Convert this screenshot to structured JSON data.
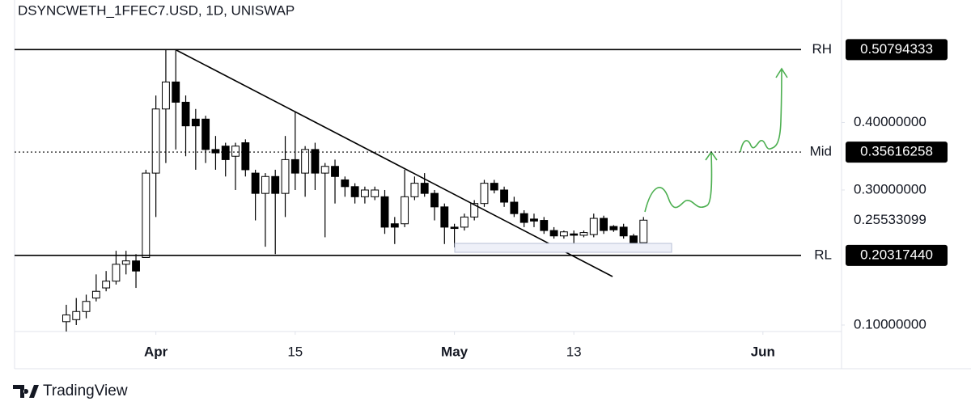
{
  "chart_data": {
    "type": "candlestick",
    "title": "DSYNCWETH_1FFEC7.USD, 1D, UNISWAP",
    "brand": "TradingView",
    "x": [
      -9,
      -8,
      -7,
      -6,
      -5,
      -4,
      -3,
      -2,
      -1,
      0,
      1,
      2,
      3,
      4,
      5,
      6,
      7,
      8,
      9,
      10,
      11,
      12,
      13,
      14,
      15,
      16,
      17,
      18,
      19,
      20,
      21,
      22,
      23,
      24,
      25,
      26,
      27,
      28,
      29,
      30,
      31,
      32,
      33,
      34,
      35,
      36,
      37,
      38,
      39,
      40,
      41,
      42,
      43,
      44,
      45,
      46,
      47,
      48,
      49
    ],
    "open": [
      0.105,
      0.108,
      0.12,
      0.14,
      0.155,
      0.165,
      0.19,
      0.195,
      0.2,
      0.325,
      0.42,
      0.46,
      0.43,
      0.405,
      0.405,
      0.36,
      0.365,
      0.35,
      0.37,
      0.325,
      0.295,
      0.32,
      0.295,
      0.345,
      0.325,
      0.36,
      0.325,
      0.335,
      0.315,
      0.305,
      0.29,
      0.29,
      0.29,
      0.25,
      0.25,
      0.29,
      0.31,
      0.295,
      0.275,
      0.245,
      0.245,
      0.26,
      0.28,
      0.31,
      0.3,
      0.282,
      0.265,
      0.257,
      0.255,
      0.24,
      0.232,
      0.235,
      0.233,
      0.234,
      0.258,
      0.246,
      0.245,
      0.232,
      0.222
    ],
    "high": [
      0.13,
      0.14,
      0.145,
      0.175,
      0.18,
      0.21,
      0.21,
      0.205,
      0.33,
      0.44,
      0.508,
      0.508,
      0.44,
      0.42,
      0.41,
      0.38,
      0.37,
      0.37,
      0.375,
      0.33,
      0.325,
      0.33,
      0.38,
      0.416,
      0.365,
      0.37,
      0.34,
      0.345,
      0.32,
      0.31,
      0.305,
      0.305,
      0.3,
      0.26,
      0.33,
      0.32,
      0.325,
      0.3,
      0.28,
      0.25,
      0.265,
      0.285,
      0.315,
      0.315,
      0.305,
      0.29,
      0.27,
      0.265,
      0.26,
      0.245,
      0.24,
      0.24,
      0.24,
      0.265,
      0.262,
      0.248,
      0.25,
      0.235,
      0.26
    ],
    "low": [
      0.09,
      0.1,
      0.11,
      0.135,
      0.15,
      0.16,
      0.175,
      0.155,
      0.2,
      0.26,
      0.34,
      0.36,
      0.35,
      0.33,
      0.34,
      0.33,
      0.32,
      0.3,
      0.32,
      0.255,
      0.216,
      0.205,
      0.26,
      0.3,
      0.29,
      0.3,
      0.23,
      0.28,
      0.29,
      0.28,
      0.28,
      0.285,
      0.235,
      0.22,
      0.245,
      0.285,
      0.29,
      0.255,
      0.22,
      0.215,
      0.24,
      0.255,
      0.275,
      0.295,
      0.275,
      0.26,
      0.245,
      0.245,
      0.235,
      0.228,
      0.228,
      0.21,
      0.23,
      0.23,
      0.235,
      0.238,
      0.228,
      0.22,
      0.218
    ],
    "close": [
      0.115,
      0.12,
      0.135,
      0.15,
      0.165,
      0.19,
      0.195,
      0.18,
      0.325,
      0.42,
      0.46,
      0.43,
      0.395,
      0.395,
      0.36,
      0.355,
      0.345,
      0.365,
      0.33,
      0.295,
      0.32,
      0.295,
      0.345,
      0.325,
      0.36,
      0.325,
      0.335,
      0.32,
      0.305,
      0.29,
      0.3,
      0.3,
      0.245,
      0.245,
      0.29,
      0.31,
      0.295,
      0.275,
      0.245,
      0.243,
      0.26,
      0.28,
      0.31,
      0.3,
      0.282,
      0.265,
      0.252,
      0.254,
      0.24,
      0.232,
      0.238,
      0.233,
      0.237,
      0.258,
      0.24,
      0.241,
      0.232,
      0.222,
      0.25533099
    ],
    "up_color": "#ffffff",
    "down_color": "#000000",
    "border_color": "#000000",
    "xlim": [
      -14.2,
      68.9
    ],
    "xticks": [
      {
        "value": 0,
        "label": "Apr"
      },
      {
        "value": 14,
        "label": "15"
      },
      {
        "value": 30,
        "label": "May"
      },
      {
        "value": 42,
        "label": "13"
      },
      {
        "value": 61,
        "label": "Jun"
      }
    ],
    "ylim": [
      0.0904,
      0.5814
    ],
    "yticks": [
      {
        "value": 0.1,
        "label": "0.10000000"
      },
      {
        "value": 0.3,
        "label": "0.30000000"
      },
      {
        "value": 0.4,
        "label": "0.40000000"
      }
    ],
    "levels": [
      {
        "name": "RH",
        "value": 0.50794333,
        "style": "solid"
      },
      {
        "name": "Mid",
        "value": 0.35616258,
        "style": "dotted"
      },
      {
        "name": "RL",
        "value": 0.2031744,
        "value_label": "0.20317440",
        "style": "solid"
      }
    ]
  }
}
